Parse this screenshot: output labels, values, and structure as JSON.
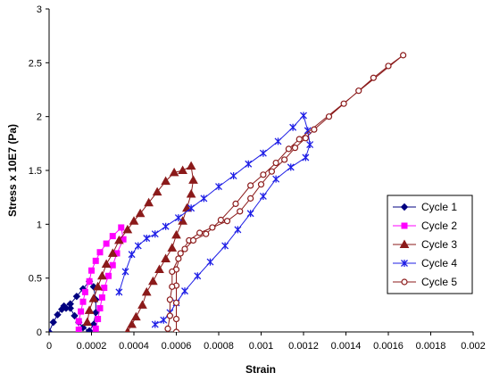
{
  "chart_data": {
    "type": "scatter",
    "xlabel": "Strain",
    "ylabel": "Stress x 10E7 (Pa)",
    "xlim": [
      0,
      0.002
    ],
    "ylim": [
      0,
      3
    ],
    "x_ticks": [
      "0",
      "0.0002",
      "0.0004",
      "0.0006",
      "0.0008",
      "0.001",
      "0.0012",
      "0.0014",
      "0.0016",
      "0.0018",
      "0.002"
    ],
    "y_ticks": [
      "0",
      "0.5",
      "1",
      "1.5",
      "2",
      "2.5",
      "3"
    ],
    "grid": false,
    "legend_position": "right",
    "series": [
      {
        "name": "Cycle 1",
        "color": "#000080",
        "marker": "diamond",
        "points": [
          [
            0,
            0
          ],
          [
            2e-05,
            0.09
          ],
          [
            4e-05,
            0.16
          ],
          [
            7e-05,
            0.24
          ],
          [
            0.0001,
            0.26
          ],
          [
            0.00013,
            0.33
          ],
          [
            0.00016,
            0.4
          ],
          [
            0.00019,
            0.47
          ],
          [
            0.00021,
            0.42
          ],
          [
            0.00022,
            0.3
          ],
          [
            0.00022,
            0.18
          ],
          [
            0.00021,
            0.07
          ],
          [
            0.00019,
            0.01
          ],
          [
            0.00016,
            0.04
          ],
          [
            0.00014,
            0.09
          ],
          [
            0.00012,
            0.15
          ],
          [
            0.0001,
            0.22
          ],
          [
            8e-05,
            0.22
          ],
          [
            6e-05,
            0.21
          ]
        ]
      },
      {
        "name": "Cycle 2",
        "color": "#ff00ff",
        "marker": "square",
        "points": [
          [
            0.00014,
            0.02
          ],
          [
            0.00014,
            0.1
          ],
          [
            0.00015,
            0.19
          ],
          [
            0.00016,
            0.28
          ],
          [
            0.00017,
            0.37
          ],
          [
            0.00019,
            0.47
          ],
          [
            0.0002,
            0.57
          ],
          [
            0.00022,
            0.66
          ],
          [
            0.00024,
            0.74
          ],
          [
            0.00027,
            0.82
          ],
          [
            0.0003,
            0.89
          ],
          [
            0.00034,
            0.97
          ],
          [
            0.00035,
            0.86
          ],
          [
            0.00032,
            0.73
          ],
          [
            0.0003,
            0.62
          ],
          [
            0.00028,
            0.52
          ],
          [
            0.00026,
            0.41
          ],
          [
            0.00025,
            0.32
          ],
          [
            0.00024,
            0.22
          ],
          [
            0.00023,
            0.12
          ],
          [
            0.00022,
            0.03
          ]
        ]
      },
      {
        "name": "Cycle 3",
        "color": "#8b1a1a",
        "marker": "triangle",
        "points": [
          [
            0.00018,
            0.09
          ],
          [
            0.00019,
            0.2
          ],
          [
            0.00021,
            0.31
          ],
          [
            0.00023,
            0.42
          ],
          [
            0.00025,
            0.52
          ],
          [
            0.00027,
            0.63
          ],
          [
            0.0003,
            0.73
          ],
          [
            0.00033,
            0.85
          ],
          [
            0.00037,
            0.95
          ],
          [
            0.0004,
            1.03
          ],
          [
            0.00043,
            1.1
          ],
          [
            0.00047,
            1.2
          ],
          [
            0.00051,
            1.3
          ],
          [
            0.00055,
            1.4
          ],
          [
            0.00059,
            1.48
          ],
          [
            0.00063,
            1.5
          ],
          [
            0.00067,
            1.54
          ],
          [
            0.00068,
            1.41
          ],
          [
            0.00067,
            1.28
          ],
          [
            0.00065,
            1.15
          ],
          [
            0.00063,
            1.03
          ],
          [
            0.0006,
            0.9
          ],
          [
            0.00058,
            0.78
          ],
          [
            0.00055,
            0.68
          ],
          [
            0.00052,
            0.58
          ],
          [
            0.00049,
            0.47
          ],
          [
            0.00046,
            0.37
          ],
          [
            0.00044,
            0.25
          ],
          [
            0.00041,
            0.14
          ],
          [
            0.00039,
            0.07
          ],
          [
            0.00037,
            0.0
          ]
        ]
      },
      {
        "name": "Cycle 4",
        "color": "#1e1ee6",
        "marker": "star",
        "points": [
          [
            0.00033,
            0.37
          ],
          [
            0.00036,
            0.56
          ],
          [
            0.00039,
            0.72
          ],
          [
            0.00042,
            0.8
          ],
          [
            0.00046,
            0.87
          ],
          [
            0.0005,
            0.91
          ],
          [
            0.00055,
            0.98
          ],
          [
            0.00061,
            1.06
          ],
          [
            0.00067,
            1.15
          ],
          [
            0.00073,
            1.24
          ],
          [
            0.0008,
            1.35
          ],
          [
            0.00087,
            1.45
          ],
          [
            0.00094,
            1.56
          ],
          [
            0.00101,
            1.66
          ],
          [
            0.00108,
            1.77
          ],
          [
            0.00115,
            1.9
          ],
          [
            0.0012,
            2.01
          ],
          [
            0.00122,
            1.87
          ],
          [
            0.00123,
            1.74
          ],
          [
            0.00121,
            1.62
          ],
          [
            0.00114,
            1.53
          ],
          [
            0.00107,
            1.42
          ],
          [
            0.00101,
            1.26
          ],
          [
            0.00095,
            1.1
          ],
          [
            0.00089,
            0.95
          ],
          [
            0.00083,
            0.8
          ],
          [
            0.00076,
            0.65
          ],
          [
            0.0007,
            0.52
          ],
          [
            0.00064,
            0.38
          ],
          [
            0.0006,
            0.27
          ],
          [
            0.00057,
            0.18
          ],
          [
            0.00054,
            0.11
          ],
          [
            0.0005,
            0.07
          ]
        ]
      },
      {
        "name": "Cycle 5",
        "color": "#8b1a1a",
        "marker": "circle",
        "points": [
          [
            0.0006,
            0.0
          ],
          [
            0.0006,
            0.12
          ],
          [
            0.0006,
            0.27
          ],
          [
            0.0006,
            0.43
          ],
          [
            0.0006,
            0.58
          ],
          [
            0.00062,
            0.73
          ],
          [
            0.00066,
            0.85
          ],
          [
            0.00071,
            0.92
          ],
          [
            0.00077,
            0.97
          ],
          [
            0.00084,
            1.03
          ],
          [
            0.0009,
            1.12
          ],
          [
            0.00095,
            1.24
          ],
          [
            0.001,
            1.37
          ],
          [
            0.00105,
            1.49
          ],
          [
            0.00111,
            1.6
          ],
          [
            0.00116,
            1.71
          ],
          [
            0.00121,
            1.8
          ],
          [
            0.00125,
            1.88
          ],
          [
            0.00132,
            2.0
          ],
          [
            0.00139,
            2.12
          ],
          [
            0.00146,
            2.24
          ],
          [
            0.00153,
            2.36
          ],
          [
            0.0016,
            2.47
          ],
          [
            0.00167,
            2.57
          ],
          [
            0.00118,
            1.79
          ],
          [
            0.00113,
            1.7
          ],
          [
            0.00107,
            1.57
          ],
          [
            0.00101,
            1.46
          ],
          [
            0.00095,
            1.36
          ],
          [
            0.00088,
            1.19
          ],
          [
            0.00081,
            1.04
          ],
          [
            0.00074,
            0.91
          ],
          [
            0.00068,
            0.85
          ],
          [
            0.00064,
            0.77
          ],
          [
            0.00061,
            0.68
          ],
          [
            0.00058,
            0.56
          ],
          [
            0.00058,
            0.42
          ],
          [
            0.00057,
            0.3
          ],
          [
            0.00057,
            0.15
          ],
          [
            0.00056,
            0.03
          ]
        ]
      }
    ]
  }
}
